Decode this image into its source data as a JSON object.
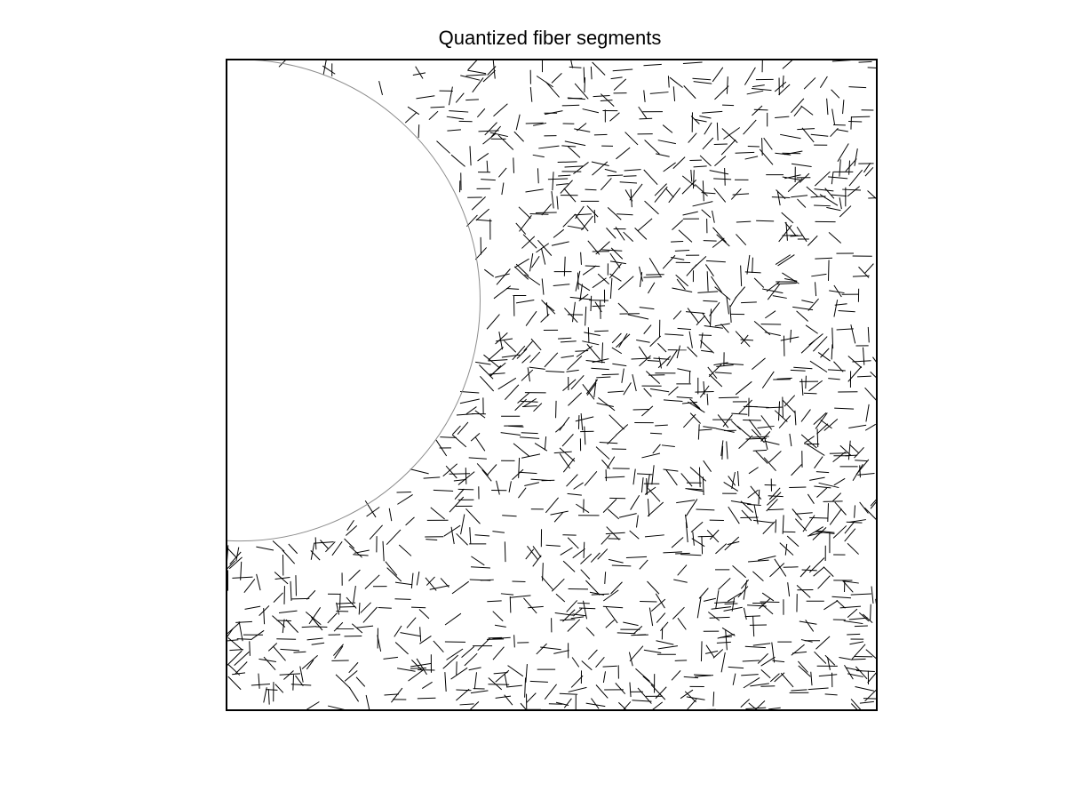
{
  "chart_data": {
    "type": "line",
    "title": "Quantized fiber segments",
    "xlabel": "",
    "ylabel": "",
    "xlim": [
      0,
      1
    ],
    "ylim": [
      0,
      1
    ],
    "aspect": "equal",
    "axis_ticks": "off",
    "grid": false,
    "colors": {
      "segments": "#000000",
      "hole_boundary": "#8c8c8c",
      "frame": "#000000",
      "background": "#ffffff"
    },
    "hole": {
      "shape": "circle",
      "center": [
        0.02,
        0.63
      ],
      "radius": 0.37
    },
    "segments": {
      "count": 1450,
      "segment_length": 0.025,
      "quantized_angles_deg": [
        0,
        45,
        90,
        135
      ],
      "direction_weights": [
        0.38,
        0.24,
        0.18,
        0.2
      ],
      "jitter_deg": 14,
      "random_seed": 7
    }
  }
}
